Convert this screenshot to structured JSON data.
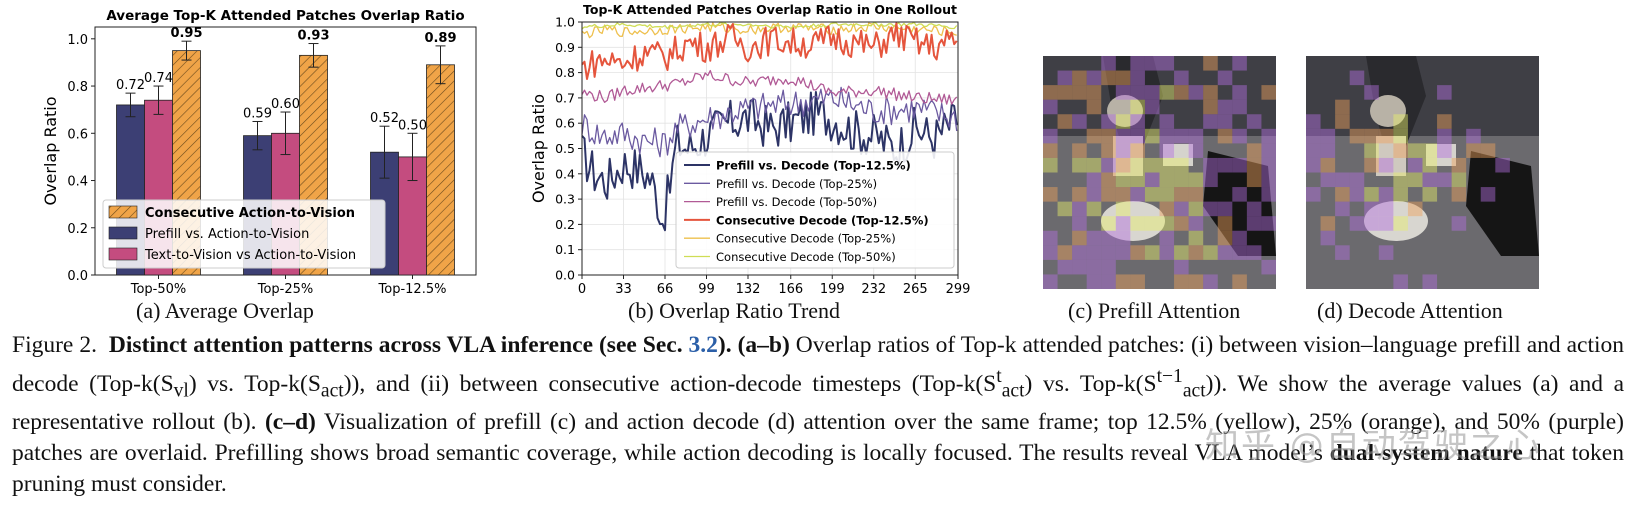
{
  "figure": {
    "panel_a": {
      "title": "Average Top-K Attended Patches Overlap Ratio",
      "subcaption": "(a) Average Overlap"
    },
    "panel_b": {
      "title": "Top-K Attended Patches Overlap Ratio in One Rollout",
      "subcaption": "(b) Overlap Ratio Trend"
    },
    "panel_c": {
      "subcaption": "(c) Prefill Attention"
    },
    "panel_d": {
      "subcaption": "(d) Decode Attention"
    }
  },
  "chart_data": [
    {
      "type": "bar",
      "title": "Average Top-K Attended Patches Overlap Ratio",
      "xlabel": "",
      "ylabel": "Overlap Ratio",
      "ylim": [
        0,
        1.05
      ],
      "yticks": [
        "0.0",
        "0.2",
        "0.4",
        "0.6",
        "0.8",
        "1.0"
      ],
      "categories": [
        "Top-50%",
        "Top-25%",
        "Top-12.5%"
      ],
      "legend_position": "lower-left",
      "series": [
        {
          "name": "Prefill vs. Action-to-Vision",
          "values": [
            0.72,
            0.59,
            0.52
          ],
          "labels": [
            "0.72",
            "0.59",
            "0.52"
          ],
          "errors": [
            0.05,
            0.06,
            0.11
          ],
          "color": "#3c3f74"
        },
        {
          "name": "Text-to-Vision vs Action-to-Vision",
          "values": [
            0.74,
            0.6,
            0.5
          ],
          "labels": [
            "0.74",
            "0.60",
            "0.50"
          ],
          "errors": [
            0.06,
            0.09,
            0.1
          ],
          "color": "#c44c7f"
        },
        {
          "name": "Consecutive Action-to-Vision",
          "values": [
            0.95,
            0.93,
            0.89
          ],
          "labels": [
            "0.95",
            "0.93",
            "0.89"
          ],
          "errors": [
            0.04,
            0.05,
            0.08
          ],
          "color": "#f0a448",
          "hatched": true
        }
      ]
    },
    {
      "type": "line",
      "title": "Top-K Attended Patches Overlap Ratio in One Rollout",
      "xlabel": "",
      "ylabel": "Overlap Ratio",
      "xlim": [
        0,
        299
      ],
      "ylim": [
        0.0,
        1.0
      ],
      "xticks": [
        "0",
        "33",
        "66",
        "99",
        "132",
        "166",
        "199",
        "232",
        "265",
        "299"
      ],
      "yticks": [
        "0.0",
        "0.1",
        "0.2",
        "0.3",
        "0.4",
        "0.5",
        "0.6",
        "0.7",
        "0.8",
        "0.9",
        "1.0"
      ],
      "grid": true,
      "legend_position": "lower-right",
      "series": [
        {
          "name": "Prefill vs. Decode (Top-12.5%)",
          "color": "#2d3466",
          "width": 2.0,
          "bold": true,
          "x": [
            0,
            10,
            20,
            33,
            45,
            55,
            60,
            64,
            66,
            70,
            75,
            85,
            99,
            115,
            132,
            150,
            166,
            185,
            199,
            215,
            232,
            250,
            265,
            280,
            299
          ],
          "y": [
            0.48,
            0.4,
            0.37,
            0.44,
            0.42,
            0.38,
            0.3,
            0.22,
            0.26,
            0.35,
            0.52,
            0.5,
            0.55,
            0.6,
            0.62,
            0.58,
            0.6,
            0.64,
            0.62,
            0.57,
            0.55,
            0.5,
            0.58,
            0.54,
            0.62
          ]
        },
        {
          "name": "Prefill vs. Decode (Top-25%)",
          "color": "#6b5aa0",
          "width": 1.3,
          "bold": false,
          "x": [
            0,
            15,
            33,
            50,
            66,
            75,
            99,
            132,
            166,
            199,
            232,
            265,
            299
          ],
          "y": [
            0.6,
            0.55,
            0.56,
            0.53,
            0.52,
            0.58,
            0.62,
            0.66,
            0.68,
            0.7,
            0.65,
            0.66,
            0.62
          ]
        },
        {
          "name": "Prefill vs. Decode (Top-50%)",
          "color": "#b15a96",
          "width": 1.3,
          "bold": false,
          "x": [
            0,
            20,
            33,
            50,
            66,
            80,
            99,
            132,
            166,
            199,
            232,
            265,
            299
          ],
          "y": [
            0.72,
            0.7,
            0.73,
            0.74,
            0.75,
            0.76,
            0.79,
            0.76,
            0.78,
            0.72,
            0.73,
            0.7,
            0.69
          ]
        },
        {
          "name": "Consecutive Decode (Top-12.5%)",
          "color": "#e5553d",
          "width": 2.0,
          "bold": true,
          "x": [
            0,
            15,
            33,
            50,
            66,
            85,
            99,
            120,
            132,
            150,
            166,
            185,
            199,
            215,
            232,
            250,
            265,
            280,
            299
          ],
          "y": [
            0.82,
            0.85,
            0.84,
            0.88,
            0.86,
            0.92,
            0.9,
            0.94,
            0.9,
            0.93,
            0.92,
            0.91,
            0.94,
            0.92,
            0.9,
            0.95,
            0.92,
            0.9,
            0.93
          ]
        },
        {
          "name": "Consecutive Decode (Top-25%)",
          "color": "#eec04d",
          "width": 1.3,
          "bold": false,
          "x": [
            0,
            20,
            33,
            66,
            99,
            132,
            166,
            199,
            232,
            265,
            299
          ],
          "y": [
            0.95,
            0.97,
            0.96,
            0.97,
            0.98,
            0.97,
            0.98,
            0.97,
            0.98,
            0.97,
            0.96
          ]
        },
        {
          "name": "Consecutive Decode (Top-50%)",
          "color": "#cfdd55",
          "width": 1.3,
          "bold": false,
          "x": [
            0,
            33,
            66,
            99,
            132,
            166,
            199,
            232,
            265,
            299
          ],
          "y": [
            0.98,
            0.99,
            0.98,
            0.99,
            0.99,
            0.98,
            0.99,
            0.99,
            0.99,
            0.98
          ]
        }
      ]
    }
  ],
  "caption": {
    "label": "Figure 2.",
    "bold_title": "Distinct attention patterns across VLA inference (see Sec.",
    "ref": "3.2",
    "bold_title_end": ").",
    "ab_label": "(a–b)",
    "ab_text_1": "Overlap ratios of Top-k attended patches: (i) between vision–language prefill and action decode (Top-k(S",
    "sub_vl": "vl",
    "ab_text_2": ") vs. Top-k(S",
    "sub_act": "act",
    "ab_text_3": ")), and (ii) between consecutive action-decode timesteps (Top-k(S",
    "sup_t": "t",
    "sub_act2": "act",
    "ab_text_4": ") vs. Top-k(S",
    "sup_t1": "t−1",
    "sub_act3": "act",
    "ab_text_5": ")). We show the average values (a) and a representative rollout (b).",
    "cd_label": "(c–d)",
    "cd_text": "Visualization of prefill (c) and action decode (d) attention over the same frame; top 12.5% (yellow), 25% (orange), and 50% (purple) patches are overlaid. Prefilling shows broad semantic coverage, while action decoding is locally focused. The results reveal VLA model’s",
    "bold_end": "dual-system nature",
    "end_text": "that token pruning must consider."
  },
  "watermark": "知乎 @自动驾驶之心",
  "colors": {
    "bg": "#ffffff",
    "ref_link": "#2b5fa8"
  }
}
